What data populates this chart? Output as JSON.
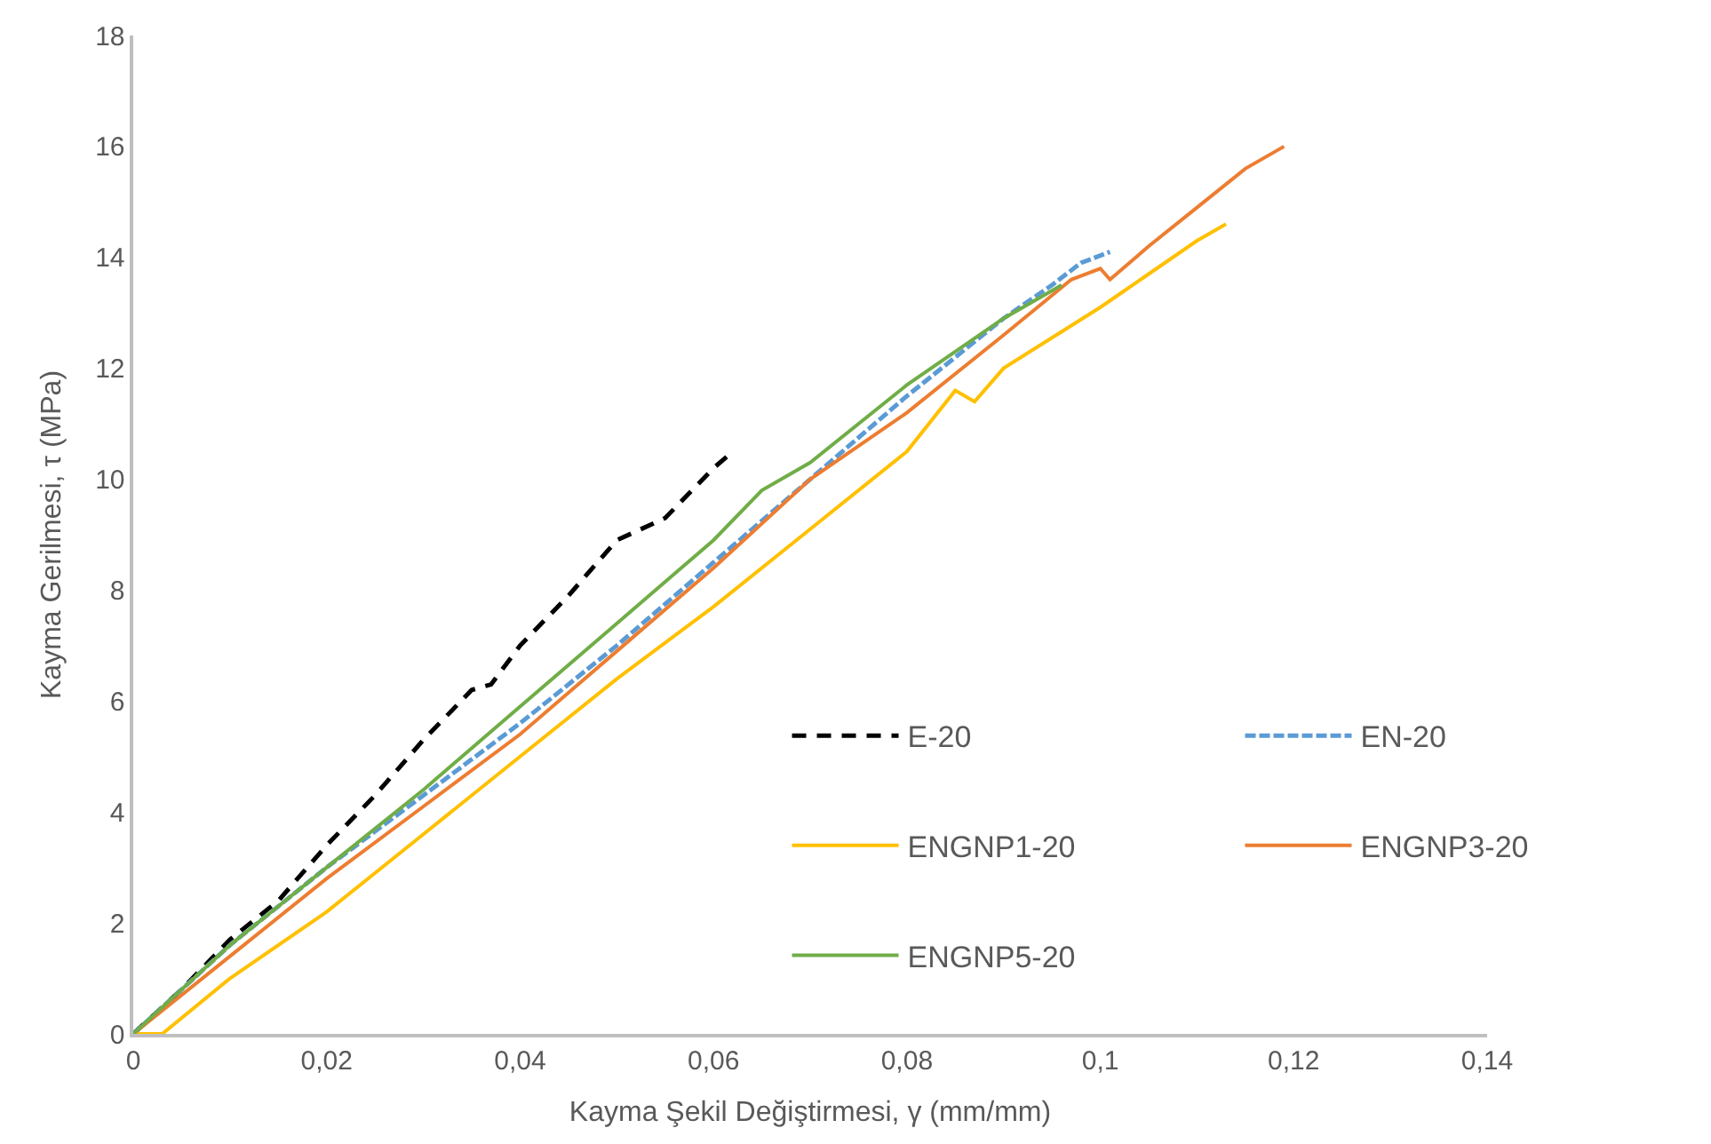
{
  "chart_data": {
    "type": "line",
    "xlabel": "Kayma Şekil Değiştirmesi, γ (mm/mm)",
    "ylabel": "Kayma Gerilmesi, τ (MPa)",
    "xlim": [
      0,
      0.14
    ],
    "xticks": [
      0,
      {
        "value": 0.02,
        "label": "0,02"
      },
      {
        "value": 0.04,
        "label": "0,04"
      },
      {
        "value": 0.06,
        "label": "0,06"
      },
      {
        "value": 0.08,
        "label": "0,08"
      },
      {
        "value": 0.1,
        "label": "0,1"
      },
      {
        "value": 0.12,
        "label": "0,12"
      },
      {
        "value": 0.14,
        "label": "0,14"
      }
    ],
    "ylim": [
      0,
      18
    ],
    "yticks": [
      0,
      2,
      4,
      6,
      8,
      10,
      12,
      14,
      16,
      18
    ],
    "grid": false,
    "legend": "bottom right",
    "marker": "none",
    "series": [
      {
        "name": "E-20",
        "color": "#000000",
        "line_style": "dashed",
        "x": [
          0,
          0.005,
          0.01,
          0.015,
          0.02,
          0.025,
          0.03,
          0.035,
          0.037,
          0.04,
          0.045,
          0.05,
          0.055,
          0.06,
          0.062
        ],
        "values": [
          0,
          0.8,
          1.7,
          2.4,
          3.4,
          4.3,
          5.3,
          6.2,
          6.3,
          7.0,
          7.9,
          8.9,
          9.3,
          10.2,
          10.5
        ]
      },
      {
        "name": "EN-20",
        "color": "#5b9bd5",
        "line_style": "dashed",
        "x": [
          0,
          0.01,
          0.02,
          0.03,
          0.04,
          0.05,
          0.06,
          0.07,
          0.08,
          0.09,
          0.095,
          0.098,
          0.101
        ],
        "values": [
          0,
          1.6,
          3.0,
          4.3,
          5.6,
          7.0,
          8.5,
          10.0,
          11.5,
          12.9,
          13.5,
          13.9,
          14.1
        ]
      },
      {
        "name": "ENGNP1-20",
        "color": "#ffc000",
        "line_style": "solid",
        "x": [
          0,
          0.003,
          0.01,
          0.02,
          0.03,
          0.04,
          0.05,
          0.06,
          0.07,
          0.08,
          0.085,
          0.087,
          0.09,
          0.1,
          0.105,
          0.11,
          0.113
        ],
        "values": [
          0,
          0,
          1.0,
          2.2,
          3.6,
          5.0,
          6.4,
          7.7,
          9.1,
          10.5,
          11.6,
          11.4,
          12.0,
          13.1,
          13.7,
          14.3,
          14.6
        ]
      },
      {
        "name": "ENGNP3-20",
        "color": "#ed7d31",
        "line_style": "solid",
        "x": [
          0,
          0.01,
          0.02,
          0.03,
          0.04,
          0.05,
          0.06,
          0.07,
          0.08,
          0.09,
          0.097,
          0.1,
          0.101,
          0.105,
          0.11,
          0.115,
          0.119
        ],
        "values": [
          0,
          1.4,
          2.8,
          4.1,
          5.4,
          6.9,
          8.4,
          10.0,
          11.2,
          12.6,
          13.6,
          13.8,
          13.6,
          14.2,
          14.9,
          15.6,
          16.0
        ]
      },
      {
        "name": "ENGNP5-20",
        "color": "#70ad47",
        "line_style": "solid",
        "x": [
          0,
          0.01,
          0.02,
          0.03,
          0.04,
          0.05,
          0.06,
          0.065,
          0.07,
          0.08,
          0.09,
          0.096
        ],
        "values": [
          0,
          1.6,
          3.0,
          4.4,
          5.9,
          7.4,
          8.9,
          9.8,
          10.3,
          11.7,
          12.9,
          13.5
        ]
      }
    ]
  }
}
